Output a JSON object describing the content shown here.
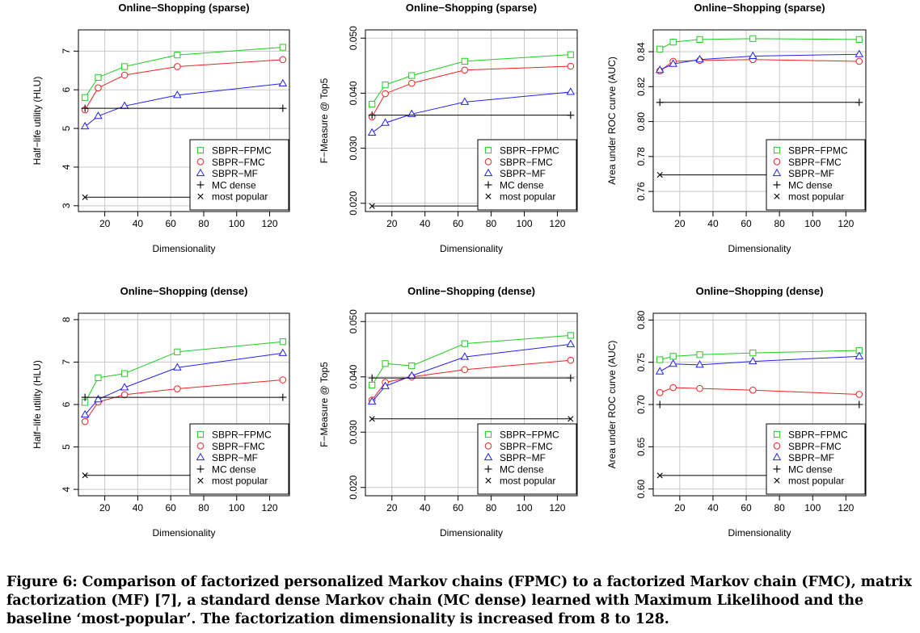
{
  "chart_data": [
    {
      "type": "line",
      "title": "Online−Shopping (sparse)",
      "xlabel": "Dimensionality",
      "ylabel": "Half−life utility (HLU)",
      "xlim": [
        4,
        132
      ],
      "ylim": [
        2.85,
        7.55
      ],
      "xticks": [
        20,
        40,
        60,
        80,
        100,
        120
      ],
      "yticks": [
        3,
        4,
        5,
        6,
        7
      ],
      "ytick_labels": [
        "3",
        "4",
        "5",
        "6",
        "7"
      ],
      "grid": true,
      "legend": "bottom-right",
      "x": [
        8,
        16,
        32,
        64,
        128
      ],
      "series": [
        {
          "name": "SBPR−FPMC",
          "color": "#22cc22",
          "marker": "square",
          "values": [
            5.8,
            6.32,
            6.6,
            6.9,
            7.1
          ]
        },
        {
          "name": "SBPR−FMC",
          "color": "#ee2222",
          "marker": "circle",
          "values": [
            5.48,
            6.05,
            6.38,
            6.6,
            6.78
          ]
        },
        {
          "name": "SBPR−MF",
          "color": "#2222ee",
          "marker": "triangle",
          "values": [
            5.05,
            5.32,
            5.58,
            5.86,
            6.16
          ]
        },
        {
          "name": "MC dense",
          "color": "#000000",
          "marker": "plus",
          "values": [
            5.52,
            5.52,
            5.52,
            5.52,
            5.52
          ]
        },
        {
          "name": "most popular",
          "color": "#000000",
          "marker": "x",
          "values": [
            3.22,
            3.22,
            3.22,
            3.22,
            3.22
          ]
        }
      ]
    },
    {
      "type": "line",
      "title": "Online−Shopping (sparse)",
      "xlabel": "Dimensionality",
      "ylabel": "F−Measure @ Top5",
      "xlim": [
        4,
        132
      ],
      "ylim": [
        0.0185,
        0.0515
      ],
      "xticks": [
        20,
        40,
        60,
        80,
        100,
        120
      ],
      "yticks": [
        0.02,
        0.03,
        0.04,
        0.05
      ],
      "ytick_labels": [
        "0.020",
        "0.030",
        "0.040",
        "0.050"
      ],
      "grid": true,
      "legend": "bottom-right",
      "x": [
        8,
        16,
        32,
        64,
        128
      ],
      "series": [
        {
          "name": "SBPR−FPMC",
          "color": "#22cc22",
          "marker": "square",
          "values": [
            0.038,
            0.0415,
            0.0432,
            0.0458,
            0.047
          ]
        },
        {
          "name": "SBPR−FMC",
          "color": "#ee2222",
          "marker": "circle",
          "values": [
            0.0357,
            0.0399,
            0.0418,
            0.0442,
            0.0449
          ]
        },
        {
          "name": "SBPR−MF",
          "color": "#2222ee",
          "marker": "triangle",
          "values": [
            0.0328,
            0.0346,
            0.0362,
            0.0384,
            0.0402
          ]
        },
        {
          "name": "MC dense",
          "color": "#000000",
          "marker": "plus",
          "values": [
            0.036,
            0.036,
            0.036,
            0.036,
            0.036
          ]
        },
        {
          "name": "most popular",
          "color": "#000000",
          "marker": "x",
          "values": [
            0.0195,
            0.0195,
            0.0195,
            0.0195,
            0.0195
          ]
        }
      ]
    },
    {
      "type": "line",
      "title": "Online−Shopping (sparse)",
      "xlabel": "Dimensionality",
      "ylabel": "Area under ROC curve (AUC)",
      "xlim": [
        4,
        132
      ],
      "ylim": [
        0.7485,
        0.8525
      ],
      "xticks": [
        20,
        40,
        60,
        80,
        100,
        120
      ],
      "yticks": [
        0.76,
        0.78,
        0.8,
        0.82,
        0.84
      ],
      "ytick_labels": [
        "0.76",
        "0.78",
        "0.80",
        "0.82",
        "0.84"
      ],
      "grid": true,
      "legend": "bottom-right",
      "x": [
        8,
        16,
        32,
        64,
        128
      ],
      "series": [
        {
          "name": "SBPR−FPMC",
          "color": "#22cc22",
          "marker": "square",
          "values": [
            0.8415,
            0.8455,
            0.847,
            0.8475,
            0.847
          ]
        },
        {
          "name": "SBPR−FMC",
          "color": "#ee2222",
          "marker": "circle",
          "values": [
            0.829,
            0.8345,
            0.835,
            0.8355,
            0.8345
          ]
        },
        {
          "name": "SBPR−MF",
          "color": "#2222ee",
          "marker": "triangle",
          "values": [
            0.8295,
            0.833,
            0.8355,
            0.8375,
            0.8385
          ]
        },
        {
          "name": "MC dense",
          "color": "#000000",
          "marker": "plus",
          "values": [
            0.811,
            0.811,
            0.811,
            0.811,
            0.811
          ]
        },
        {
          "name": "most popular",
          "color": "#000000",
          "marker": "x",
          "values": [
            0.7695,
            0.7695,
            0.7695,
            0.7695,
            0.7695
          ]
        }
      ]
    },
    {
      "type": "line",
      "title": "Online−Shopping (dense)",
      "xlabel": "Dimensionality",
      "ylabel": "Half−life utility (HLU)",
      "xlim": [
        4,
        132
      ],
      "ylim": [
        3.85,
        8.15
      ],
      "xticks": [
        20,
        40,
        60,
        80,
        100,
        120
      ],
      "yticks": [
        4,
        5,
        6,
        7,
        8
      ],
      "ytick_labels": [
        "4",
        "5",
        "6",
        "7",
        "8"
      ],
      "grid": true,
      "legend": "bottom-right",
      "x": [
        8,
        16,
        32,
        64,
        128
      ],
      "series": [
        {
          "name": "SBPR−FPMC",
          "color": "#22cc22",
          "marker": "square",
          "values": [
            6.05,
            6.63,
            6.73,
            7.24,
            7.48
          ]
        },
        {
          "name": "SBPR−FMC",
          "color": "#ee2222",
          "marker": "circle",
          "values": [
            5.6,
            6.06,
            6.23,
            6.37,
            6.58
          ]
        },
        {
          "name": "SBPR−MF",
          "color": "#2222ee",
          "marker": "triangle",
          "values": [
            5.76,
            6.12,
            6.4,
            6.87,
            7.21
          ]
        },
        {
          "name": "MC dense",
          "color": "#000000",
          "marker": "plus",
          "values": [
            6.17,
            6.17,
            6.17,
            6.17,
            6.17
          ]
        },
        {
          "name": "most popular",
          "color": "#000000",
          "marker": "x",
          "values": [
            4.33,
            4.33,
            4.33,
            4.33,
            4.33
          ]
        }
      ]
    },
    {
      "type": "line",
      "title": "Online−Shopping (dense)",
      "xlabel": "Dimensionality",
      "ylabel": "F−Measure @ Top5",
      "xlim": [
        4,
        132
      ],
      "ylim": [
        0.0185,
        0.0515
      ],
      "xticks": [
        20,
        40,
        60,
        80,
        100,
        120
      ],
      "yticks": [
        0.02,
        0.03,
        0.04,
        0.05
      ],
      "ytick_labels": [
        "0.020",
        "0.030",
        "0.040",
        "0.050"
      ],
      "grid": true,
      "legend": "bottom-right",
      "x": [
        8,
        16,
        32,
        64,
        128
      ],
      "series": [
        {
          "name": "SBPR−FPMC",
          "color": "#22cc22",
          "marker": "square",
          "values": [
            0.0385,
            0.0424,
            0.042,
            0.046,
            0.0475
          ]
        },
        {
          "name": "SBPR−FMC",
          "color": "#ee2222",
          "marker": "circle",
          "values": [
            0.0358,
            0.039,
            0.04,
            0.0413,
            0.043
          ]
        },
        {
          "name": "SBPR−MF",
          "color": "#2222ee",
          "marker": "triangle",
          "values": [
            0.0355,
            0.0383,
            0.0402,
            0.0436,
            0.0459
          ]
        },
        {
          "name": "MC dense",
          "color": "#000000",
          "marker": "plus",
          "values": [
            0.0398,
            0.0398,
            0.0398,
            0.0398,
            0.0398
          ]
        },
        {
          "name": "most popular",
          "color": "#000000",
          "marker": "x",
          "values": [
            0.0324,
            0.0324,
            0.0324,
            0.0324,
            0.0324
          ]
        }
      ]
    },
    {
      "type": "line",
      "title": "Online−Shopping (dense)",
      "xlabel": "Dimensionality",
      "ylabel": "Area under ROC curve (AUC)",
      "xlim": [
        4,
        132
      ],
      "ylim": [
        0.592,
        0.808
      ],
      "xticks": [
        20,
        40,
        60,
        80,
        100,
        120
      ],
      "yticks": [
        0.6,
        0.65,
        0.7,
        0.75,
        0.8
      ],
      "ytick_labels": [
        "0.60",
        "0.65",
        "0.70",
        "0.75",
        "0.80"
      ],
      "grid": true,
      "legend": "bottom-right",
      "x": [
        8,
        16,
        32,
        64,
        128
      ],
      "series": [
        {
          "name": "SBPR−FPMC",
          "color": "#22cc22",
          "marker": "square",
          "values": [
            0.753,
            0.757,
            0.759,
            0.761,
            0.764
          ]
        },
        {
          "name": "SBPR−FMC",
          "color": "#ee2222",
          "marker": "circle",
          "values": [
            0.714,
            0.72,
            0.719,
            0.717,
            0.712
          ]
        },
        {
          "name": "SBPR−MF",
          "color": "#2222ee",
          "marker": "triangle",
          "values": [
            0.739,
            0.748,
            0.747,
            0.751,
            0.757
          ]
        },
        {
          "name": "MC dense",
          "color": "#000000",
          "marker": "plus",
          "values": [
            0.7,
            0.7,
            0.7,
            0.7,
            0.7
          ]
        },
        {
          "name": "most popular",
          "color": "#000000",
          "marker": "x",
          "values": [
            0.616,
            0.616,
            0.616,
            0.616,
            0.616
          ]
        }
      ]
    }
  ],
  "caption": {
    "label": "Figure 6:",
    "text": "Comparison of factorized personalized Markov chains (FPMC) to a factorized Markov chain (FMC), matrix factorization (MF) [7], a standard dense Markov chain (MC dense) learned with Maximum Likelihood and the baseline ‘most-popular’. The factorization dimensionality is increased from 8 to 128."
  }
}
